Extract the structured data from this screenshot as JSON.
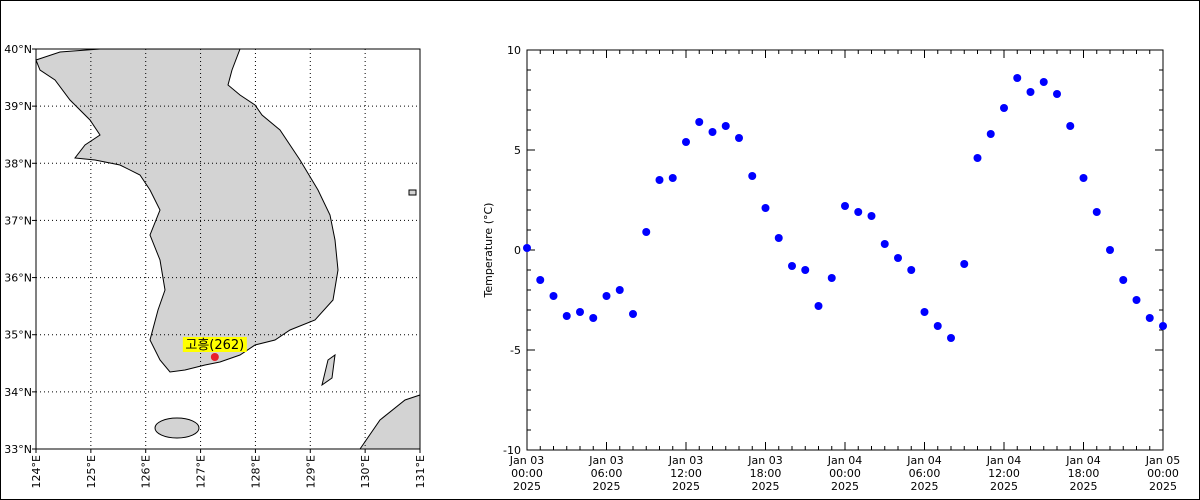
{
  "map": {
    "lonlim": [
      124,
      131
    ],
    "latlim": [
      33,
      40
    ],
    "lonticks": [
      {
        "value": 124,
        "label": "124°E"
      },
      {
        "value": 125,
        "label": "125°E"
      },
      {
        "value": 126,
        "label": "126°E"
      },
      {
        "value": 127,
        "label": "127°E"
      },
      {
        "value": 128,
        "label": "128°E"
      },
      {
        "value": 129,
        "label": "129°E"
      },
      {
        "value": 130,
        "label": "130°E"
      },
      {
        "value": 131,
        "label": "131°E"
      }
    ],
    "latticks": [
      {
        "value": 33,
        "label": "33°N"
      },
      {
        "value": 34,
        "label": "34°N"
      },
      {
        "value": 35,
        "label": "35°N"
      },
      {
        "value": 36,
        "label": "36°N"
      },
      {
        "value": 37,
        "label": "37°N"
      },
      {
        "value": 38,
        "label": "38°N"
      },
      {
        "value": 39,
        "label": "39°N"
      },
      {
        "value": 40,
        "label": "40°N"
      }
    ],
    "station": {
      "label": "고흥(262)",
      "lon": 127.26,
      "lat": 34.61,
      "color": "#e8202a"
    }
  },
  "chart_data": {
    "type": "scatter",
    "y_label": "Temperature (°C)",
    "color": "#0000ff",
    "x": [
      "2025-01-03T00:00",
      "2025-01-03T01:00",
      "2025-01-03T02:00",
      "2025-01-03T03:00",
      "2025-01-03T04:00",
      "2025-01-03T05:00",
      "2025-01-03T06:00",
      "2025-01-03T07:00",
      "2025-01-03T08:00",
      "2025-01-03T09:00",
      "2025-01-03T10:00",
      "2025-01-03T11:00",
      "2025-01-03T12:00",
      "2025-01-03T13:00",
      "2025-01-03T14:00",
      "2025-01-03T15:00",
      "2025-01-03T16:00",
      "2025-01-03T17:00",
      "2025-01-03T18:00",
      "2025-01-03T19:00",
      "2025-01-03T20:00",
      "2025-01-03T21:00",
      "2025-01-03T22:00",
      "2025-01-03T23:00",
      "2025-01-04T00:00",
      "2025-01-04T01:00",
      "2025-01-04T02:00",
      "2025-01-04T03:00",
      "2025-01-04T04:00",
      "2025-01-04T05:00",
      "2025-01-04T06:00",
      "2025-01-04T07:00",
      "2025-01-04T08:00",
      "2025-01-04T09:00",
      "2025-01-04T10:00",
      "2025-01-04T11:00",
      "2025-01-04T12:00",
      "2025-01-04T13:00",
      "2025-01-04T14:00",
      "2025-01-04T15:00",
      "2025-01-04T16:00",
      "2025-01-04T17:00",
      "2025-01-04T18:00",
      "2025-01-04T19:00",
      "2025-01-04T20:00",
      "2025-01-04T21:00",
      "2025-01-04T22:00",
      "2025-01-04T23:00",
      "2025-01-05T00:00"
    ],
    "values": [
      0.1,
      -1.5,
      -2.3,
      -3.3,
      -3.1,
      -3.4,
      -2.3,
      -2.0,
      -3.2,
      0.9,
      3.5,
      3.6,
      5.4,
      6.4,
      5.9,
      6.2,
      5.6,
      3.7,
      2.1,
      0.6,
      -0.8,
      -1.0,
      -2.8,
      -1.4,
      2.2,
      1.9,
      1.7,
      0.3,
      -0.4,
      -1.0,
      -3.1,
      -3.8,
      -4.4,
      -0.7,
      4.6,
      5.8,
      7.1,
      8.6,
      7.9,
      8.4,
      7.8,
      6.2,
      3.6,
      1.9,
      0.0,
      -1.5,
      -2.5,
      -3.4,
      -3.8
    ],
    "xlim": [
      "2025-01-03T00:00",
      "2025-01-05T00:00"
    ],
    "xticks": [
      {
        "value": "2025-01-03T00:00",
        "label": "Jan 03\n00:00\n2025"
      },
      {
        "value": "2025-01-03T06:00",
        "label": "Jan 03\n06:00\n2025"
      },
      {
        "value": "2025-01-03T12:00",
        "label": "Jan 03\n12:00\n2025"
      },
      {
        "value": "2025-01-03T18:00",
        "label": "Jan 03\n18:00\n2025"
      },
      {
        "value": "2025-01-04T00:00",
        "label": "Jan 04\n00:00\n2025"
      },
      {
        "value": "2025-01-04T06:00",
        "label": "Jan 04\n06:00\n2025"
      },
      {
        "value": "2025-01-04T12:00",
        "label": "Jan 04\n12:00\n2025"
      },
      {
        "value": "2025-01-04T18:00",
        "label": "Jan 04\n18:00\n2025"
      },
      {
        "value": "2025-01-05T00:00",
        "label": "Jan 05\n00:00\n2025"
      }
    ],
    "ylim": [
      -10,
      10
    ],
    "yticks": [
      -10,
      -5,
      0,
      5,
      10
    ]
  }
}
